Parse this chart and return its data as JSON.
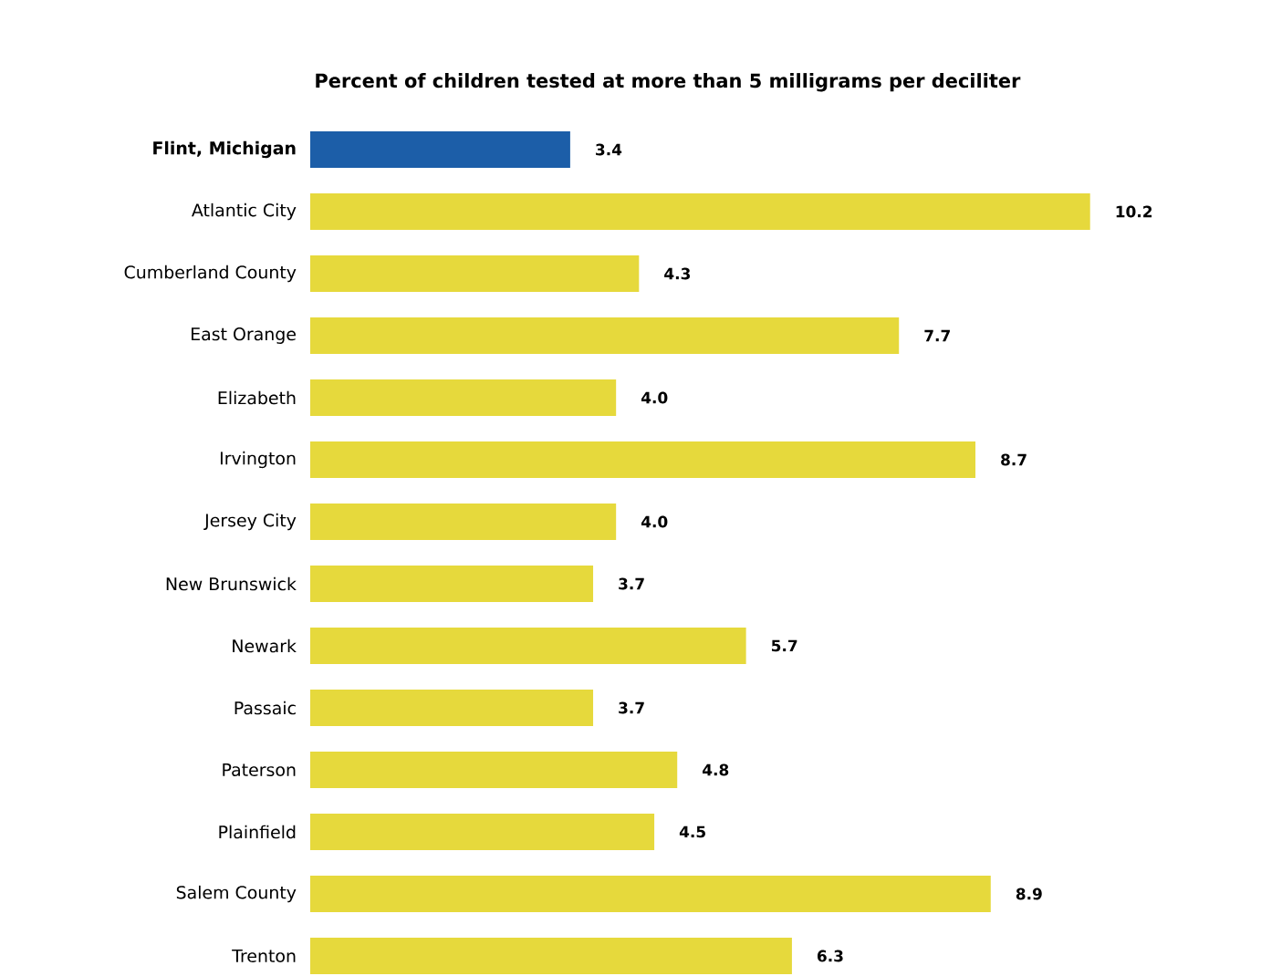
{
  "chart_data": {
    "type": "bar",
    "orientation": "horizontal",
    "title": "Percent of children tested at more than 5 milligrams per deciliter",
    "categories": [
      "**Flint, Michigan**",
      "Atlantic City",
      "Cumberland County",
      "East Orange",
      "Elizabeth",
      "Irvington",
      "Jersey City",
      "New Brunswick",
      "Newark",
      "Passaic",
      "Paterson",
      "Plainfield",
      "Salem County",
      "Trenton"
    ],
    "values": [
      3.4,
      10.2,
      4.3,
      7.7,
      4.0,
      8.7,
      4.0,
      3.7,
      5.7,
      3.7,
      4.8,
      4.5,
      8.9,
      6.3
    ],
    "colors": [
      "#1c5ea8",
      "#e6d93c",
      "#e6d93c",
      "#e6d93c",
      "#e6d93c",
      "#e6d93c",
      "#e6d93c",
      "#e6d93c",
      "#e6d93c",
      "#e6d93c",
      "#e6d93c",
      "#e6d93c",
      "#e6d93c",
      "#e6d93c"
    ],
    "value_labels": [
      "3.4",
      "10.2",
      "4.3",
      "7.7",
      "4.0",
      "8.7",
      "4.0",
      "3.7",
      "5.7",
      "3.7",
      "4.8",
      "4.5",
      "8.9",
      "6.3"
    ]
  }
}
